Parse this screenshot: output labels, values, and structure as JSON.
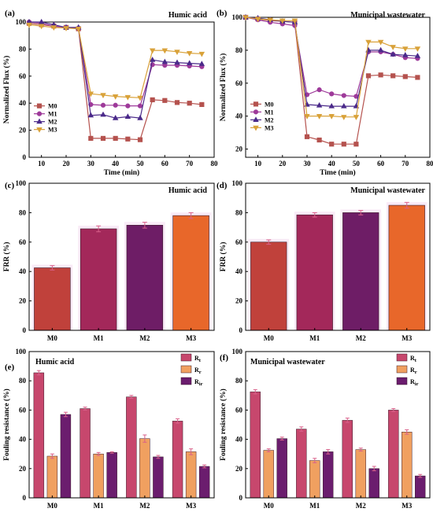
{
  "chart_data": [
    {
      "id": "a",
      "panel_label": "(a)",
      "type": "line",
      "title": "Humic acid",
      "xlabel": "Time (min)",
      "ylabel": "Normalized Flux (%)",
      "xlim": [
        5,
        80
      ],
      "ylim": [
        0,
        100
      ],
      "xticks": [
        10,
        20,
        30,
        40,
        50,
        60,
        70,
        80
      ],
      "yticks": [
        0,
        20,
        40,
        60,
        80,
        100
      ],
      "x": [
        5,
        10,
        15,
        20,
        25,
        30,
        35,
        40,
        45,
        50,
        55,
        60,
        65,
        70,
        75
      ],
      "legend_position": "left-middle",
      "series": [
        {
          "name": "M0",
          "color": "#b5524e",
          "marker": "square",
          "values": [
            99,
            98,
            97,
            96,
            95,
            14,
            14,
            14,
            13.5,
            13,
            42.5,
            42,
            40.5,
            40,
            39
          ]
        },
        {
          "name": "M1",
          "color": "#9e3a9a",
          "marker": "circle",
          "values": [
            100,
            99,
            97,
            96,
            95.5,
            39,
            38.5,
            38.5,
            38,
            38,
            68.5,
            68,
            68,
            67.5,
            67
          ]
        },
        {
          "name": "M2",
          "color": "#4b2a8a",
          "marker": "triangle",
          "values": [
            100,
            100,
            98,
            96,
            96,
            31,
            31.5,
            29,
            30,
            29,
            72,
            70.5,
            70,
            69.5,
            69
          ]
        },
        {
          "name": "M3",
          "color": "#d9a23a",
          "marker": "tri-down",
          "values": [
            98,
            97,
            96,
            95.5,
            95,
            47,
            46,
            45,
            44.5,
            44,
            79,
            79,
            78,
            77,
            76.5
          ]
        }
      ]
    },
    {
      "id": "b",
      "panel_label": "(b)",
      "type": "line",
      "title": "Municipal wastewater",
      "xlabel": "Time (min)",
      "ylabel": "Normalized Flux (%)",
      "xlim": [
        5,
        80
      ],
      "ylim": [
        15,
        100
      ],
      "xticks": [
        10,
        20,
        30,
        40,
        50,
        60,
        70,
        80
      ],
      "yticks": [
        20,
        40,
        60,
        80,
        100
      ],
      "x": [
        5,
        10,
        15,
        20,
        25,
        30,
        35,
        40,
        45,
        50,
        55,
        60,
        65,
        70,
        75
      ],
      "legend_position": "left-middle",
      "series": [
        {
          "name": "M0",
          "color": "#b5524e",
          "marker": "square",
          "values": [
            100,
            99,
            98,
            97.5,
            97,
            27.5,
            25.5,
            23,
            23,
            23,
            64.5,
            65,
            64.5,
            64,
            63.5
          ]
        },
        {
          "name": "M1",
          "color": "#9e3a9a",
          "marker": "circle",
          "values": [
            100,
            98.5,
            97,
            96,
            95,
            53,
            56,
            53.5,
            52.5,
            52,
            79,
            79,
            77.5,
            75.5,
            75
          ]
        },
        {
          "name": "M2",
          "color": "#4b2a8a",
          "marker": "triangle",
          "values": [
            100,
            99.5,
            98.5,
            97.5,
            97,
            47,
            46.5,
            46,
            46,
            46,
            80,
            80,
            77.5,
            77,
            76.5
          ]
        },
        {
          "name": "M3",
          "color": "#d9a23a",
          "marker": "tri-down",
          "values": [
            100,
            99,
            98.5,
            98,
            98,
            40,
            40,
            40,
            39.5,
            39.5,
            85,
            85,
            82,
            81,
            81
          ]
        }
      ]
    },
    {
      "id": "c",
      "panel_label": "(c)",
      "type": "bar",
      "title": "Humic acid",
      "xlabel": "",
      "ylabel": "FRR (%)",
      "ylim": [
        0,
        100
      ],
      "yticks": [
        0,
        20,
        40,
        60,
        80,
        100
      ],
      "categories": [
        "M0",
        "M1",
        "M2",
        "M3"
      ],
      "values": [
        42.5,
        69,
        71.5,
        78
      ],
      "errors": [
        1.5,
        2,
        2,
        2
      ],
      "colors": [
        "#c0413b",
        "#a3285a",
        "#6e1d66",
        "#e8672a"
      ]
    },
    {
      "id": "d",
      "panel_label": "(d)",
      "type": "bar",
      "title": "Municipal wastewater",
      "xlabel": "",
      "ylabel": "FRR (%)",
      "ylim": [
        0,
        100
      ],
      "yticks": [
        0,
        20,
        40,
        60,
        80,
        100
      ],
      "categories": [
        "M0",
        "M1",
        "M2",
        "M3"
      ],
      "values": [
        60,
        78.5,
        80,
        85
      ],
      "errors": [
        1.5,
        1.5,
        1.5,
        2
      ],
      "colors": [
        "#c0413b",
        "#a3285a",
        "#6e1d66",
        "#e8672a"
      ]
    },
    {
      "id": "e",
      "panel_label": "(e)",
      "type": "bar",
      "title": "Humic acid",
      "xlabel": "",
      "ylabel": "Fouling resistance (%)",
      "ylim": [
        0,
        100
      ],
      "yticks": [
        0,
        20,
        40,
        60,
        80,
        100
      ],
      "categories": [
        "M0",
        "M1",
        "M2",
        "M3"
      ],
      "legend_position": "top-right",
      "series": [
        {
          "name": "Rt",
          "base": "R",
          "sub": "t",
          "color": "#c7476d",
          "values": [
            85.5,
            61,
            69,
            52.5
          ],
          "errors": [
            1.5,
            1,
            1,
            1.5
          ]
        },
        {
          "name": "Rr",
          "base": "R",
          "sub": "r",
          "color": "#f0a060",
          "values": [
            28.5,
            30,
            40.5,
            31.5
          ],
          "errors": [
            1.5,
            1,
            2.5,
            2
          ]
        },
        {
          "name": "Rir",
          "base": "R",
          "sub": "ir",
          "color": "#6b1d6e",
          "values": [
            57,
            31,
            28,
            21.5
          ],
          "errors": [
            1.5,
            0.5,
            1,
            1
          ]
        }
      ]
    },
    {
      "id": "f",
      "panel_label": "(f)",
      "type": "bar",
      "title": "Municipal wastewater",
      "xlabel": "",
      "ylabel": "Fouling resistance (%)",
      "ylim": [
        0,
        100
      ],
      "yticks": [
        0,
        20,
        40,
        60,
        80,
        100
      ],
      "categories": [
        "M0",
        "M1",
        "M2",
        "M3"
      ],
      "legend_position": "top-right",
      "series": [
        {
          "name": "Rt",
          "base": "R",
          "sub": "t",
          "color": "#c7476d",
          "values": [
            72.5,
            47,
            53,
            60
          ],
          "errors": [
            1.5,
            1.5,
            1.5,
            1
          ]
        },
        {
          "name": "Rr",
          "base": "R",
          "sub": "r",
          "color": "#f0a060",
          "values": [
            32.5,
            25.5,
            33,
            45
          ],
          "errors": [
            1,
            1.5,
            1,
            1.5
          ]
        },
        {
          "name": "Rir",
          "base": "R",
          "sub": "ir",
          "color": "#6b1d6e",
          "values": [
            40.5,
            31.5,
            20,
            15
          ],
          "errors": [
            1,
            1.5,
            1.5,
            1
          ]
        }
      ]
    }
  ]
}
